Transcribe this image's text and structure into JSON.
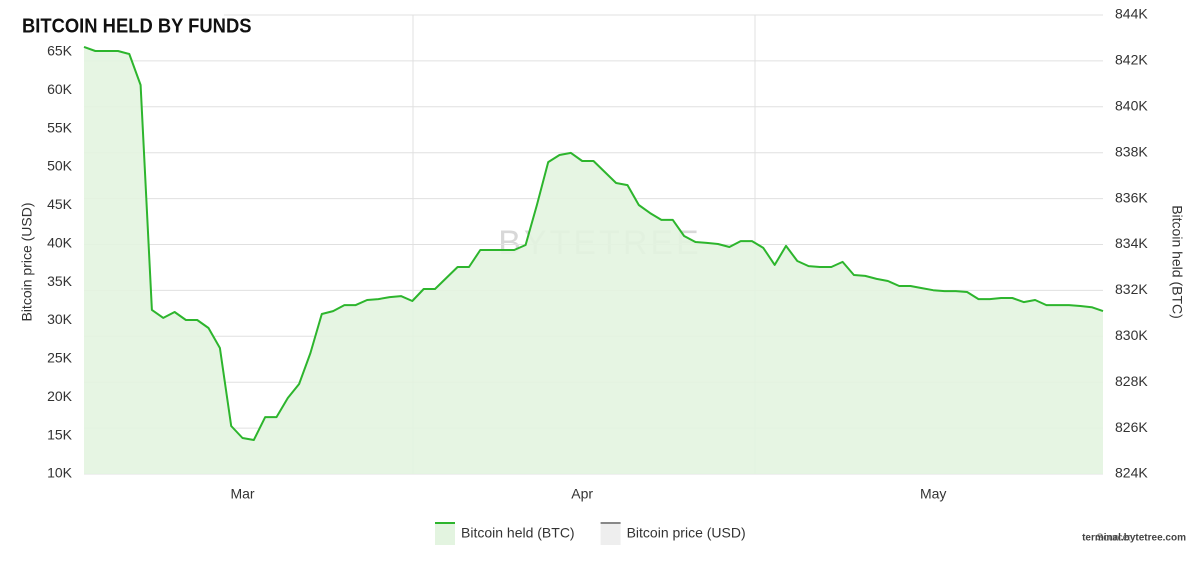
{
  "chart_data": {
    "type": "line",
    "title": "BITCOIN HELD BY FUNDS",
    "watermark": "BYTETREE",
    "y_label": "Bitcoin price (USD)",
    "y2_label": "Bitcoin held (BTC)",
    "source_label": "Source:",
    "source": "terminal.bytetree.com",
    "categories": [
      null,
      null,
      null,
      null,
      null,
      null,
      null,
      null,
      null,
      null,
      null,
      null,
      null,
      null,
      "Mar",
      null,
      null,
      null,
      null,
      null,
      null,
      null,
      null,
      null,
      null,
      null,
      null,
      null,
      null,
      null,
      null,
      null,
      null,
      null,
      null,
      null,
      null,
      null,
      null,
      null,
      null,
      null,
      null,
      null,
      "Apr",
      null,
      null,
      null,
      null,
      null,
      null,
      null,
      null,
      null,
      null,
      null,
      null,
      null,
      null,
      null,
      null,
      null,
      null,
      null,
      null,
      null,
      null,
      null,
      null,
      null,
      null,
      null,
      null,
      null,
      null,
      "May",
      null,
      null,
      null,
      null,
      null,
      null,
      null,
      null,
      null,
      null,
      null,
      null,
      null,
      null,
      null
    ],
    "series": [
      {
        "name": "Bitcoin held (BTC)",
        "color": "#2db52d",
        "fill": "#e3f4e0",
        "axis": "y2",
        "visible": true,
        "values": [
          842610,
          842430,
          842430,
          842430,
          842300,
          840950,
          831150,
          830800,
          831060,
          830710,
          830710,
          830360,
          829490,
          826090,
          825570,
          825480,
          826480,
          826480,
          827310,
          827920,
          829270,
          830970,
          831100,
          831360,
          831360,
          831580,
          831620,
          831710,
          831750,
          831540,
          832060,
          832060,
          832540,
          833020,
          833020,
          833760,
          833760,
          833760,
          833760,
          833980,
          835720,
          837590,
          837900,
          837990,
          837640,
          837640,
          837160,
          836680,
          836590,
          835720,
          835370,
          835070,
          835070,
          834370,
          834110,
          834070,
          834020,
          833890,
          834150,
          834150,
          833850,
          833110,
          833940,
          833280,
          833060,
          833020,
          833020,
          833240,
          832670,
          832630,
          832500,
          832410,
          832190,
          832190,
          832100,
          832010,
          831970,
          831970,
          831930,
          831620,
          831620,
          831670,
          831670,
          831490,
          831580,
          831360,
          831360,
          831360,
          831320,
          831270,
          831100
        ]
      },
      {
        "name": "Bitcoin price (USD)",
        "color": "#888888",
        "fill": "#eeeeee",
        "axis": "y",
        "visible": false,
        "values": [
          null,
          null,
          null,
          null,
          null,
          null,
          null,
          null,
          null,
          null,
          null,
          null,
          null,
          null,
          null,
          null,
          null,
          null,
          null,
          null,
          null,
          null,
          null,
          null,
          null,
          null,
          null,
          null,
          null,
          null,
          null,
          null,
          null,
          null,
          null,
          null,
          null,
          null,
          null,
          null,
          null,
          null,
          null,
          null,
          null,
          null,
          null,
          null,
          null,
          null,
          null,
          null,
          null,
          null,
          null,
          null,
          null,
          null,
          null,
          null,
          null,
          null,
          null,
          null,
          null,
          null,
          null,
          null,
          null,
          null,
          null,
          null,
          null,
          null,
          null,
          null,
          null,
          null,
          null,
          null,
          null,
          null,
          null,
          null,
          null,
          null,
          null,
          null,
          null,
          null,
          null
        ]
      }
    ],
    "ylim": [
      10000,
      69800
    ],
    "yticks": [
      {
        "value": 10000,
        "label": "10K"
      },
      {
        "value": 15000,
        "label": "15K"
      },
      {
        "value": 20000,
        "label": "20K"
      },
      {
        "value": 25000,
        "label": "25K"
      },
      {
        "value": 30000,
        "label": "30K"
      },
      {
        "value": 35000,
        "label": "35K"
      },
      {
        "value": 40000,
        "label": "40K"
      },
      {
        "value": 45000,
        "label": "45K"
      },
      {
        "value": 50000,
        "label": "50K"
      },
      {
        "value": 55000,
        "label": "55K"
      },
      {
        "value": 60000,
        "label": "60K"
      },
      {
        "value": 65000,
        "label": "65K"
      }
    ],
    "y2lim": [
      824000,
      844000
    ],
    "y2ticks": [
      {
        "value": 824000,
        "label": "824K"
      },
      {
        "value": 826000,
        "label": "826K"
      },
      {
        "value": 828000,
        "label": "828K"
      },
      {
        "value": 830000,
        "label": "830K"
      },
      {
        "value": 832000,
        "label": "832K"
      },
      {
        "value": 834000,
        "label": "834K"
      },
      {
        "value": 836000,
        "label": "836K"
      },
      {
        "value": 838000,
        "label": "838K"
      },
      {
        "value": 840000,
        "label": "840K"
      },
      {
        "value": 842000,
        "label": "842K"
      },
      {
        "value": 844000,
        "label": "844K"
      }
    ],
    "grid": true
  }
}
